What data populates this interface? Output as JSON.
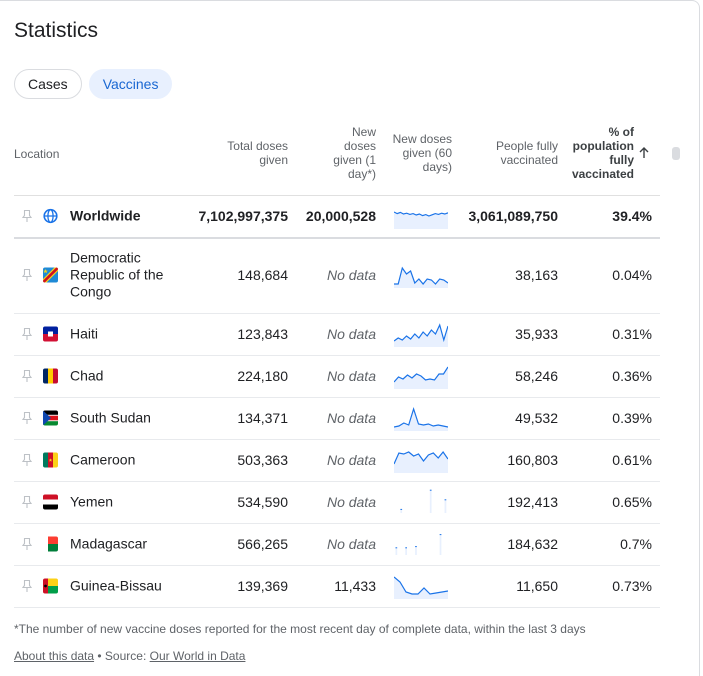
{
  "title": "Statistics",
  "tabs": [
    {
      "label": "Cases",
      "active": false
    },
    {
      "label": "Vaccines",
      "active": true
    }
  ],
  "columns": {
    "location": "Location",
    "total": [
      "Total doses",
      "given"
    ],
    "new": [
      "New",
      "doses",
      "given (1",
      "day*)"
    ],
    "spark": [
      "New doses",
      "given (60",
      "days)"
    ],
    "fully": [
      "People fully",
      "vaccinated"
    ],
    "pct": [
      "% of",
      "population",
      "fully",
      "vaccinated"
    ],
    "sort_icon": "arrow-up-icon"
  },
  "worldwide": {
    "name": "Worldwide",
    "icon": "globe-icon",
    "total": "7,102,997,375",
    "new": "20,000,528",
    "fully": "3,061,089,750",
    "pct": "39.4%",
    "spark": [
      0.7,
      0.62,
      0.68,
      0.6,
      0.64,
      0.58,
      0.62,
      0.55,
      0.6,
      0.52,
      0.57,
      0.5,
      0.56,
      0.62,
      0.58,
      0.64,
      0.6,
      0.66
    ]
  },
  "rows": [
    {
      "name": [
        "Democratic",
        "Republic of the",
        "Congo"
      ],
      "flag": "cd",
      "total": "148,684",
      "new": "No data",
      "fully": "38,163",
      "pct": "0.04%",
      "spark": [
        0.05,
        0.05,
        0.85,
        0.55,
        0.7,
        0.1,
        0.3,
        0.05,
        0.3,
        0.25,
        0.05,
        0.3,
        0.25,
        0.1
      ]
    },
    {
      "name": [
        "Haiti"
      ],
      "flag": "ht",
      "total": "123,843",
      "new": "No data",
      "fully": "35,933",
      "pct": "0.31%",
      "spark": [
        0.15,
        0.3,
        0.2,
        0.4,
        0.25,
        0.5,
        0.3,
        0.6,
        0.4,
        0.7,
        0.5,
        0.95,
        0.2,
        0.9
      ]
    },
    {
      "name": [
        "Chad"
      ],
      "flag": "td",
      "total": "224,180",
      "new": "No data",
      "fully": "58,246",
      "pct": "0.36%",
      "spark": [
        0.2,
        0.45,
        0.35,
        0.55,
        0.4,
        0.6,
        0.5,
        0.3,
        0.35,
        0.3,
        0.6,
        0.6,
        0.95
      ]
    },
    {
      "name": [
        "South Sudan"
      ],
      "flag": "ss",
      "total": "134,371",
      "new": "No data",
      "fully": "49,532",
      "pct": "0.39%",
      "spark": [
        0.05,
        0.1,
        0.25,
        0.15,
        0.95,
        0.2,
        0.15,
        0.2,
        0.1,
        0.15,
        0.1,
        0.05
      ]
    },
    {
      "name": [
        "Cameroon"
      ],
      "flag": "cm",
      "total": "503,363",
      "new": "No data",
      "fully": "160,803",
      "pct": "0.61%",
      "spark": [
        0.3,
        0.85,
        0.8,
        0.9,
        0.7,
        0.8,
        0.45,
        0.75,
        0.85,
        0.6,
        0.9,
        0.55
      ]
    },
    {
      "name": [
        "Yemen"
      ],
      "flag": "ye",
      "total": "534,590",
      "new": "No data",
      "fully": "192,413",
      "pct": "0.65%",
      "bars": [
        0,
        0.15,
        0,
        0,
        0,
        0,
        0,
        0.95,
        0,
        0,
        0.55
      ]
    },
    {
      "name": [
        "Madagascar"
      ],
      "flag": "mg",
      "total": "566,265",
      "new": "No data",
      "fully": "184,632",
      "pct": "0.7%",
      "bars": [
        0.3,
        0,
        0.3,
        0,
        0.35,
        0,
        0,
        0,
        0,
        0.85,
        0
      ]
    },
    {
      "name": [
        "Guinea-Bissau"
      ],
      "flag": "gw",
      "total": "139,369",
      "new": "11,433",
      "fully": "11,650",
      "pct": "0.73%",
      "spark": [
        0.95,
        0.7,
        0.2,
        0.1,
        0.1,
        0.4,
        0.1,
        0.15,
        0.2,
        0.25
      ]
    }
  ],
  "footnote": "*The number of new vaccine doses reported for the most recent day of complete data, within the last 3 days",
  "source": {
    "about": "About this data",
    "sep": " • Source: ",
    "link": "Our World in Data"
  },
  "colors": {
    "accent": "#1a73e8",
    "spark_fill": "#e8f0fe"
  }
}
